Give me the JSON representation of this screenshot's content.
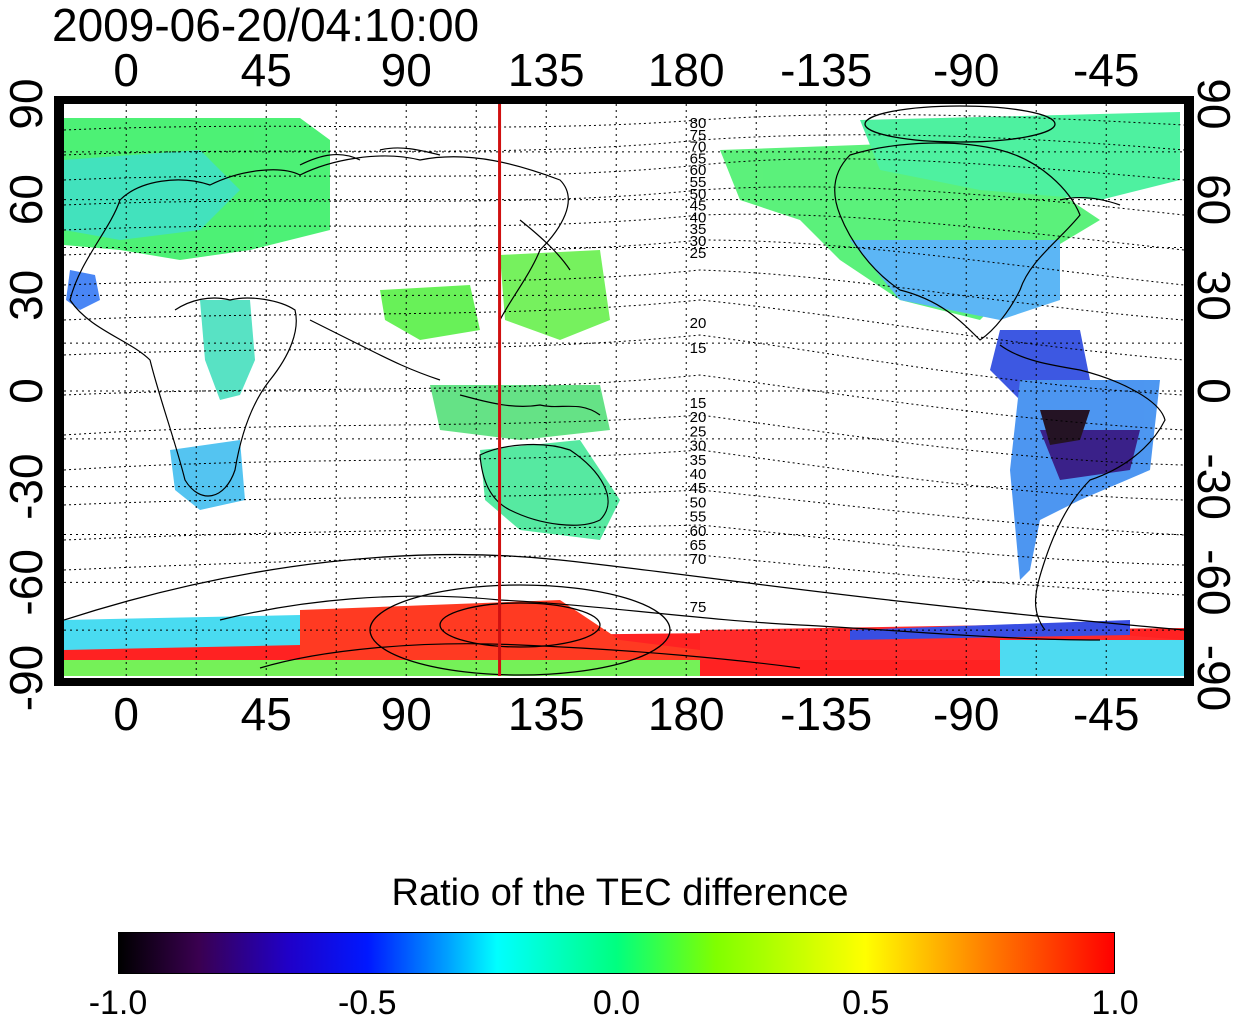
{
  "title": "2009-06-20/04:10:00",
  "map": {
    "top_lon_ticks": [
      "0",
      "45",
      "90",
      "135",
      "180",
      "-135",
      "-90",
      "-45"
    ],
    "bottom_lon_ticks": [
      "0",
      "45",
      "90",
      "135",
      "180",
      "-135",
      "-90",
      "-45"
    ],
    "left_lat_ticks": [
      "90",
      "60",
      "30",
      "0",
      "-30",
      "-60",
      "-90"
    ],
    "right_lat_ticks": [
      "90",
      "60",
      "30",
      "0",
      "-30",
      "-60",
      "-90"
    ],
    "contour_labels_north": [
      "80",
      "75",
      "70",
      "65",
      "60",
      "55",
      "50",
      "45",
      "40",
      "35",
      "30",
      "25",
      "20",
      "15"
    ],
    "contour_labels_south": [
      "15",
      "20",
      "25",
      "30",
      "35",
      "40",
      "45",
      "50",
      "55",
      "60",
      "65",
      "70",
      "75"
    ],
    "red_meridian_lon": 120,
    "lon_range": [
      -20,
      340
    ],
    "lat_range": [
      -90,
      90
    ],
    "colors": {
      "meridian": "#d01010",
      "coast": "#000000",
      "contour": "#000000"
    }
  },
  "colorbar": {
    "title": "Ratio of the TEC difference",
    "tick_labels": [
      "-1.0",
      "-0.5",
      "0.0",
      "0.5",
      "1.0"
    ],
    "range": [
      -1.0,
      1.0
    ]
  }
}
